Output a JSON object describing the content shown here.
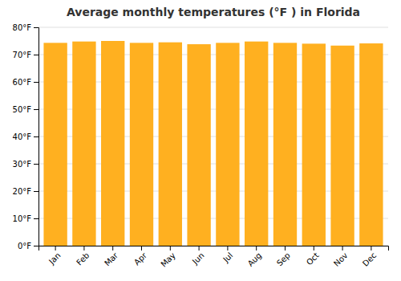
{
  "chart_data": {
    "type": "bar",
    "title": "Average monthly temperatures (°F ) in Florida",
    "categories": [
      "Jan",
      "Feb",
      "Mar",
      "Apr",
      "May",
      "Jun",
      "Jul",
      "Aug",
      "Sep",
      "Oct",
      "Nov",
      "Dec"
    ],
    "values": [
      74.3,
      74.8,
      75.0,
      74.3,
      74.5,
      73.8,
      74.3,
      74.8,
      74.3,
      74.0,
      73.3,
      74.1
    ],
    "color": "#FFB020",
    "ylim": [
      0,
      80
    ],
    "yticks": [
      {
        "value": 0,
        "label": "0°F"
      },
      {
        "value": 10,
        "label": "10°F"
      },
      {
        "value": 20,
        "label": "20°F"
      },
      {
        "value": 30,
        "label": "30°F"
      },
      {
        "value": 40,
        "label": "40°F"
      },
      {
        "value": 50,
        "label": "50°F"
      },
      {
        "value": 60,
        "label": "60°F"
      },
      {
        "value": 70,
        "label": "70°F"
      },
      {
        "value": 80,
        "label": "80°F"
      }
    ],
    "grid": true
  }
}
